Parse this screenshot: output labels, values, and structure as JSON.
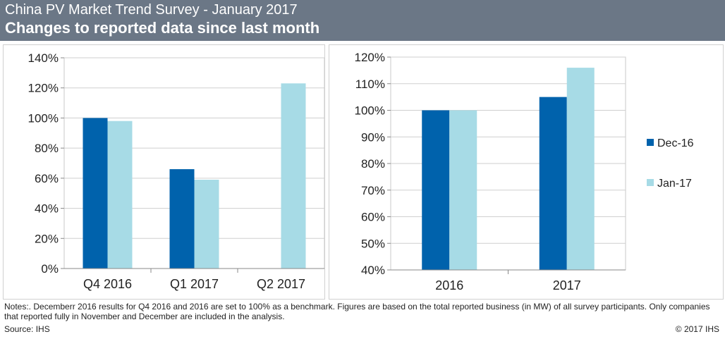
{
  "header": {
    "title": "China PV Market Trend Survey - January 2017",
    "subtitle": "Changes to reported data since last month"
  },
  "colors": {
    "dec16": "#0062ac",
    "jan17": "#a7dbe6",
    "header_bg": "#6b7786"
  },
  "chart_data": [
    {
      "type": "bar",
      "categories": [
        "Q4 2016",
        "Q1 2017",
        "Q2 2017"
      ],
      "series": [
        {
          "name": "Dec-16",
          "values": [
            100,
            66,
            null
          ]
        },
        {
          "name": "Jan-17",
          "values": [
            98,
            59,
            123
          ]
        }
      ],
      "ylim": [
        0,
        140
      ],
      "yticks": [
        0,
        20,
        40,
        60,
        80,
        100,
        120,
        140
      ],
      "tick_format": "percent",
      "grid": true
    },
    {
      "type": "bar",
      "categories": [
        "2016",
        "2017"
      ],
      "series": [
        {
          "name": "Dec-16",
          "values": [
            100,
            105
          ]
        },
        {
          "name": "Jan-17",
          "values": [
            100,
            116
          ]
        }
      ],
      "ylim": [
        40,
        120
      ],
      "yticks": [
        40,
        50,
        60,
        70,
        80,
        90,
        100,
        110,
        120
      ],
      "tick_format": "percent",
      "grid": true,
      "legend": {
        "position": "right",
        "entries": [
          "Dec-16",
          "Jan-17"
        ]
      }
    }
  ],
  "footer": {
    "notes": "Notes:. Decemberr 2016 results for Q4 2016 and 2016 are set to 100% as a benchmark. Figures are based on the total reported business (in MW) of all survey participants. Only companies that reported fully in November and December are included in the analysis.",
    "source": "Source: IHS",
    "copyright": "© 2017 IHS"
  }
}
